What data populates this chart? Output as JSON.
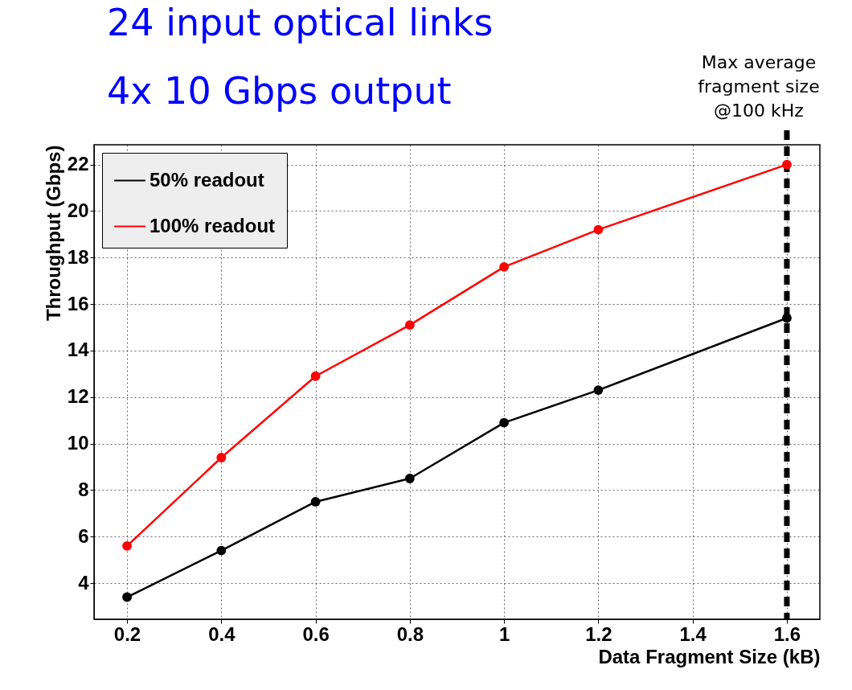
{
  "chart_data": {
    "type": "line",
    "xlabel": "Data Fragment Size (kB)",
    "ylabel": "Throughput (Gbps)",
    "annotations": [
      "24 input optical links",
      "4x 10 Gbps output"
    ],
    "x": [
      0.2,
      0.4,
      0.6,
      0.8,
      1.0,
      1.2,
      1.6
    ],
    "series": [
      {
        "name": "50% readout",
        "color": "#000000",
        "values": [
          3.4,
          5.4,
          7.5,
          8.5,
          10.9,
          12.3,
          15.4
        ]
      },
      {
        "name": "100% readout",
        "color": "#ff0000",
        "values": [
          5.6,
          9.4,
          12.9,
          15.1,
          17.6,
          19.2,
          22.0
        ]
      }
    ],
    "xlim": [
      0.13,
      1.67
    ],
    "ylim": [
      2.45,
      22.85
    ],
    "xticks": [
      0.2,
      0.4,
      0.6,
      0.8,
      1,
      1.2,
      1.4,
      1.6
    ],
    "yticks": [
      4,
      6,
      8,
      10,
      12,
      14,
      16,
      18,
      20,
      22
    ],
    "ref_lines": [
      {
        "axis": "x",
        "value": 1.6,
        "label": "Max average\nfragment size\n@100 kHz",
        "color": "#000000",
        "line_style": "dashed"
      }
    ],
    "grid": true,
    "legend": "top left",
    "marker": "circle",
    "line_style": "solid"
  }
}
